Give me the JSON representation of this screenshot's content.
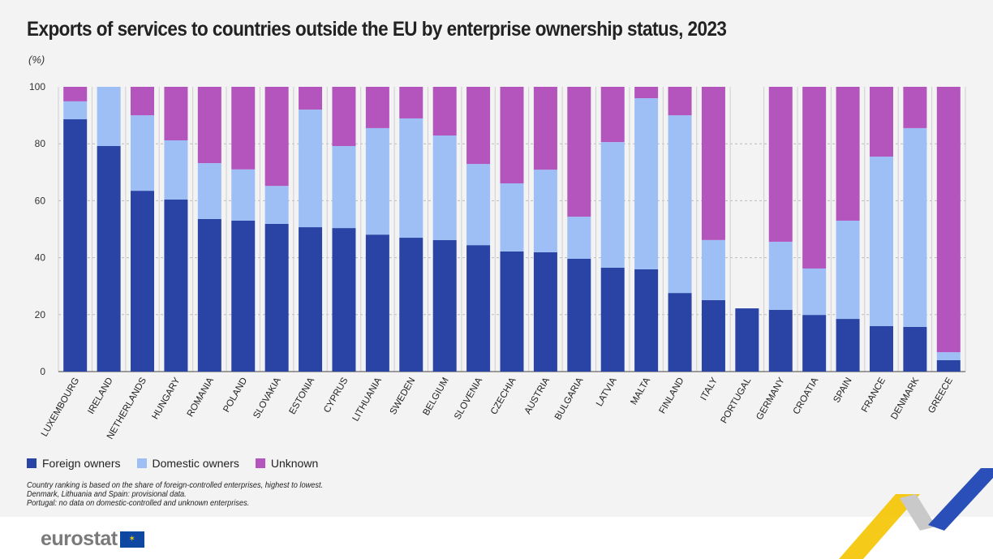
{
  "chart_data": {
    "type": "bar",
    "stacked": true,
    "title": "Exports of services to countries outside the EU by enterprise ownership status, 2023",
    "unit": "(%)",
    "ylim": [
      0,
      100
    ],
    "yticks": [
      "0",
      "20",
      "40",
      "60",
      "80",
      "100"
    ],
    "grid": true,
    "legend_position": "bottom-left",
    "categories": [
      "LUXEMBOURG",
      "IRELAND",
      "NETHERLANDS",
      "HUNGARY",
      "ROMANIA",
      "POLAND",
      "SLOVAKIA",
      "ESTONIA",
      "CYPRUS",
      "LITHUANIA",
      "SWEDEN",
      "BELGIUM",
      "SLOVENIA",
      "CZECHIA",
      "AUSTRIA",
      "BULGARIA",
      "LATVIA",
      "MALTA",
      "FINLAND",
      "ITALY",
      "PORTUGAL",
      "GERMANY",
      "CROATIA",
      "SPAIN",
      "FRANCE",
      "DENMARK",
      "GREECE"
    ],
    "series": [
      {
        "name": "Foreign owners",
        "color": "#2a44a6",
        "values": [
          88.6,
          79.2,
          63.5,
          60.4,
          53.6,
          53.0,
          51.9,
          50.7,
          50.4,
          48.1,
          47.0,
          46.2,
          44.4,
          42.2,
          41.9,
          39.6,
          36.5,
          35.9,
          27.6,
          25.1,
          22.2,
          21.7,
          19.9,
          18.5,
          16.0,
          15.7,
          4.0
        ]
      },
      {
        "name": "Domestic owners",
        "color": "#9dbff5",
        "values": [
          6.3,
          20.8,
          26.5,
          20.8,
          19.6,
          18.0,
          13.3,
          41.3,
          28.8,
          37.4,
          41.9,
          36.7,
          28.5,
          23.9,
          29.0,
          14.8,
          44.1,
          60.1,
          62.4,
          21.1,
          0,
          23.9,
          16.3,
          34.5,
          59.5,
          69.8,
          2.8
        ]
      },
      {
        "name": "Unknown",
        "color": "#b454bd",
        "values": [
          5.1,
          0.0,
          10.0,
          18.8,
          26.8,
          29.0,
          34.8,
          8.0,
          20.8,
          14.5,
          11.1,
          17.1,
          27.1,
          33.9,
          29.1,
          45.6,
          19.4,
          4.0,
          10.0,
          53.8,
          0,
          54.4,
          63.8,
          47.0,
          24.5,
          14.5,
          93.2
        ]
      }
    ]
  },
  "notes": [
    "Country ranking is based on the share of foreign-controlled enterprises, highest to lowest.",
    "Denmark, Lithuania and Spain: provisional data.",
    "Portugal: no data on domestic-controlled and unknown enterprises."
  ],
  "logo": {
    "text": "eurostat",
    "flag_icon": "eu-flag-icon"
  }
}
